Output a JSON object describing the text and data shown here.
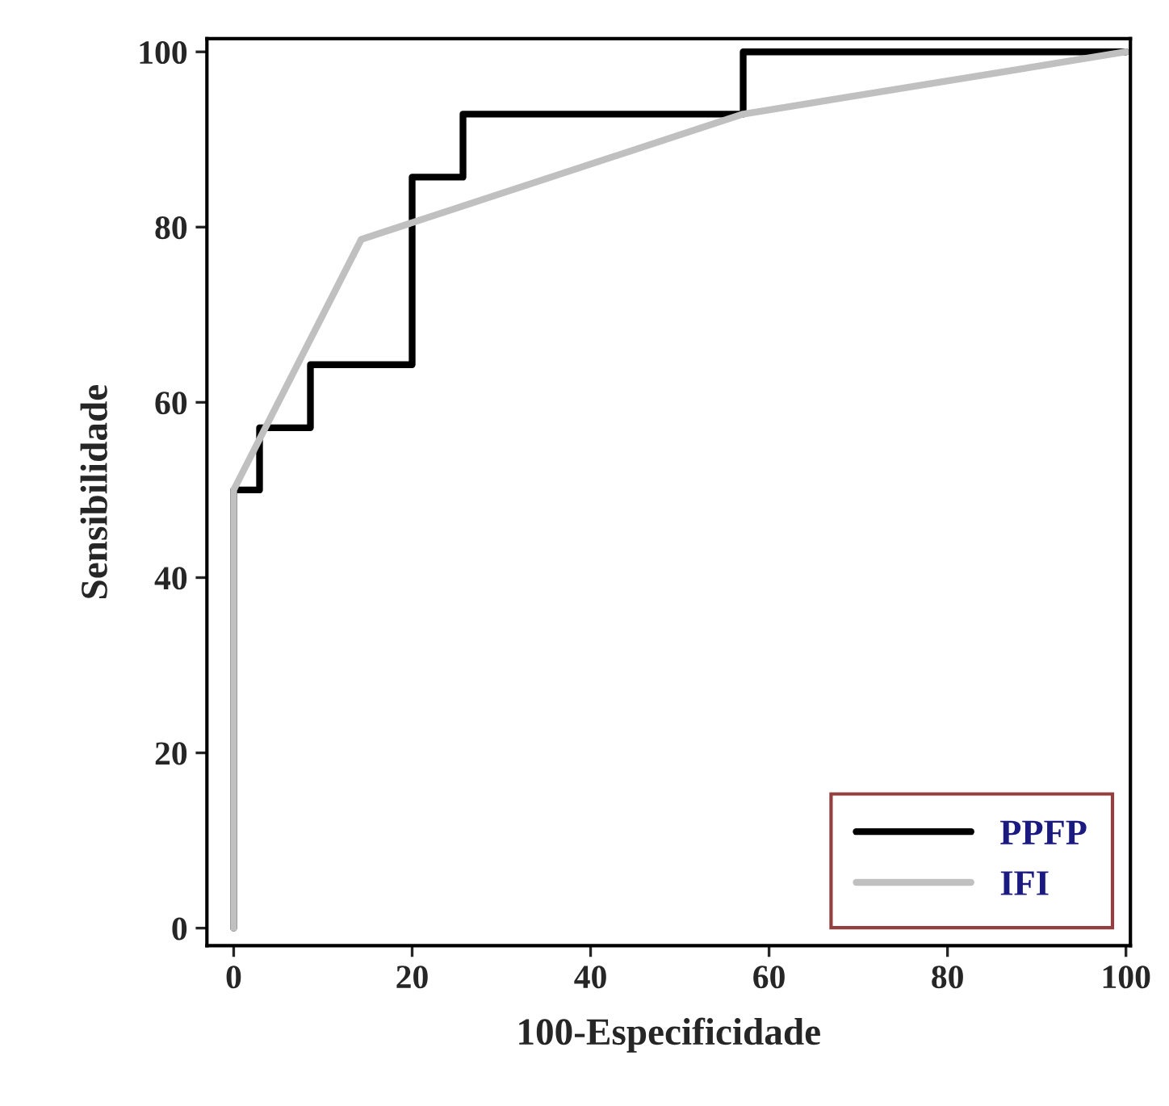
{
  "chart_data": {
    "type": "line",
    "xlabel": "100-Especificidade",
    "ylabel": "Sensibilidade",
    "series": [
      {
        "name": "PPFP",
        "color": "#000000",
        "x": [
          0,
          0,
          2.9,
          2.9,
          8.6,
          8.6,
          20,
          20,
          25.7,
          25.7,
          57.1,
          57.1,
          100
        ],
        "values": [
          0,
          50,
          50,
          57.1,
          57.1,
          64.3,
          64.3,
          85.7,
          85.7,
          92.9,
          92.9,
          100,
          100
        ]
      },
      {
        "name": "IFI",
        "color": "#c0c0c0",
        "x": [
          0,
          0,
          14.3,
          57.1,
          100
        ],
        "values": [
          0,
          50,
          78.6,
          92.9,
          100
        ]
      }
    ],
    "xlim": [
      -3,
      100.5
    ],
    "ylim": [
      -2,
      101.5
    ],
    "xticks": [
      0,
      20,
      40,
      60,
      80,
      100
    ],
    "yticks": [
      0,
      20,
      40,
      60,
      80,
      100
    ],
    "grid": false,
    "legend": "bottom right",
    "marker": "none",
    "line_style": "solid"
  }
}
